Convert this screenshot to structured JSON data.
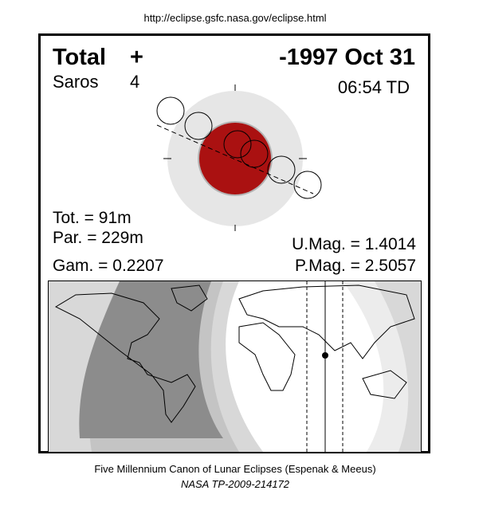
{
  "url": "http://eclipse.gsfc.nasa.gov/eclipse.html",
  "header": {
    "type": "Total",
    "symbol": "+",
    "date": "-1997 Oct 31",
    "saros_label": "Saros",
    "saros": "4",
    "time": "06:54 TD"
  },
  "stats": {
    "tot": "Tot. =  91m",
    "par": "Par. = 229m",
    "gam": "Gam. = 0.2207",
    "umag": "U.Mag. = 1.4014",
    "pmag": "P.Mag. = 2.5057"
  },
  "footer": {
    "line1": "Five Millennium Canon of Lunar Eclipses (Espenak & Meeus)",
    "line2": "NASA TP-2009-214172"
  }
}
